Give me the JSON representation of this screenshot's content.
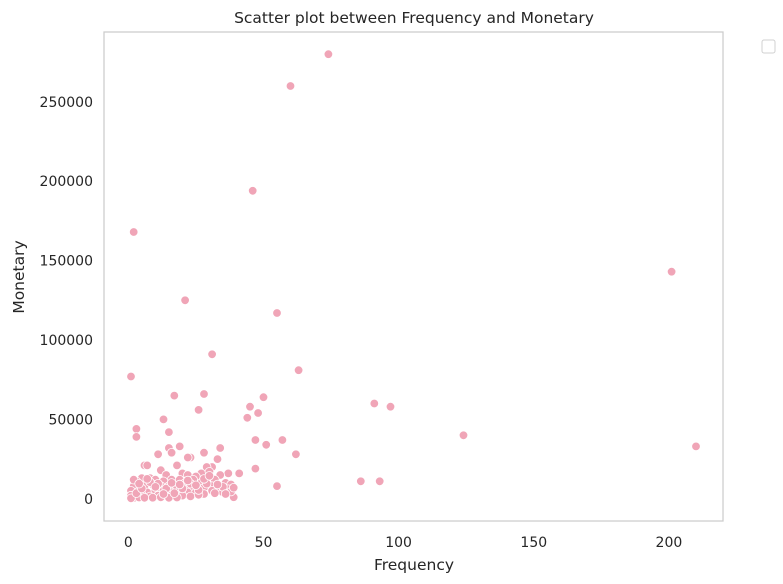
{
  "chart_data": {
    "type": "scatter",
    "title": "Scatter plot between Frequency and Monetary",
    "xlabel": "Frequency",
    "ylabel": "Monetary",
    "xlim": [
      -9,
      220
    ],
    "ylim": [
      -14000,
      294000
    ],
    "xticks": [
      0,
      50,
      100,
      150,
      200
    ],
    "yticks": [
      0,
      50000,
      100000,
      150000,
      200000,
      250000
    ],
    "grid": false,
    "legend": "top-right, outside plot (empty)",
    "colors": {
      "point": "#f0a5b7",
      "edge": "#ffffff",
      "frame": "#cccccc",
      "text": "#262626"
    },
    "points": [
      [
        74,
        280000
      ],
      [
        60,
        260000
      ],
      [
        46,
        194000
      ],
      [
        2,
        168000
      ],
      [
        201,
        143000
      ],
      [
        21,
        125000
      ],
      [
        55,
        117000
      ],
      [
        31,
        91000
      ],
      [
        63,
        81000
      ],
      [
        1,
        77000
      ],
      [
        28,
        66000
      ],
      [
        17,
        65000
      ],
      [
        50,
        64000
      ],
      [
        91,
        60000
      ],
      [
        45,
        58000
      ],
      [
        97,
        58000
      ],
      [
        26,
        56000
      ],
      [
        48,
        54000
      ],
      [
        44,
        51000
      ],
      [
        13,
        50000
      ],
      [
        3,
        44000
      ],
      [
        15,
        42000
      ],
      [
        124,
        40000
      ],
      [
        3,
        39000
      ],
      [
        47,
        37000
      ],
      [
        57,
        37000
      ],
      [
        51,
        34000
      ],
      [
        210,
        33000
      ],
      [
        19,
        33000
      ],
      [
        34,
        32000
      ],
      [
        15,
        32000
      ],
      [
        28,
        29000
      ],
      [
        62,
        28000
      ],
      [
        11,
        28000
      ],
      [
        16,
        29000
      ],
      [
        23,
        26000
      ],
      [
        22,
        26000
      ],
      [
        33,
        25000
      ],
      [
        6,
        21000
      ],
      [
        7,
        21000
      ],
      [
        18,
        21000
      ],
      [
        31,
        20000
      ],
      [
        29,
        20000
      ],
      [
        47,
        19000
      ],
      [
        12,
        18000
      ],
      [
        37,
        16000
      ],
      [
        41,
        16000
      ],
      [
        20,
        16000
      ],
      [
        27,
        16000
      ],
      [
        30,
        17000
      ],
      [
        14,
        15000
      ],
      [
        22,
        15000
      ],
      [
        34,
        15000
      ],
      [
        25,
        14000
      ],
      [
        5,
        13000
      ],
      [
        8,
        13000
      ],
      [
        10,
        12000
      ],
      [
        16,
        12000
      ],
      [
        19,
        12000
      ],
      [
        24,
        12000
      ],
      [
        32,
        12000
      ],
      [
        3,
        11000
      ],
      [
        13,
        11000
      ],
      [
        21,
        10000
      ],
      [
        27,
        10000
      ],
      [
        86,
        11000
      ],
      [
        93,
        11000
      ],
      [
        36,
        10000
      ],
      [
        38,
        9000
      ],
      [
        55,
        8000
      ],
      [
        2,
        8000
      ],
      [
        6,
        8000
      ],
      [
        9,
        9000
      ],
      [
        12,
        8000
      ],
      [
        15,
        8000
      ],
      [
        18,
        7000
      ],
      [
        21,
        8000
      ],
      [
        24,
        7000
      ],
      [
        28,
        7000
      ],
      [
        31,
        8000
      ],
      [
        34,
        6000
      ],
      [
        37,
        6000
      ],
      [
        1,
        5000
      ],
      [
        4,
        5000
      ],
      [
        7,
        4000
      ],
      [
        10,
        5000
      ],
      [
        13,
        5000
      ],
      [
        16,
        4000
      ],
      [
        19,
        5000
      ],
      [
        22,
        4000
      ],
      [
        25,
        4000
      ],
      [
        28,
        3000
      ],
      [
        31,
        5000
      ],
      [
        35,
        4000
      ],
      [
        1,
        2000
      ],
      [
        3,
        1500
      ],
      [
        5,
        2500
      ],
      [
        8,
        1500
      ],
      [
        11,
        2000
      ],
      [
        14,
        1500
      ],
      [
        17,
        2500
      ],
      [
        20,
        2000
      ],
      [
        23,
        1500
      ],
      [
        26,
        2500
      ],
      [
        39,
        1000
      ],
      [
        2,
        500
      ],
      [
        4,
        800
      ],
      [
        6,
        600
      ],
      [
        9,
        700
      ],
      [
        12,
        900
      ],
      [
        15,
        600
      ],
      [
        18,
        800
      ],
      [
        1,
        300
      ],
      [
        3,
        3500
      ],
      [
        5,
        6500
      ],
      [
        8,
        10500
      ],
      [
        11,
        9500
      ],
      [
        14,
        6500
      ],
      [
        17,
        3500
      ],
      [
        20,
        6500
      ],
      [
        23,
        9500
      ],
      [
        26,
        5500
      ],
      [
        29,
        9500
      ],
      [
        32,
        3500
      ],
      [
        35,
        7500
      ],
      [
        38,
        4500
      ],
      [
        2,
        12000
      ],
      [
        4,
        9500
      ],
      [
        7,
        12500
      ],
      [
        10,
        7500
      ],
      [
        13,
        3000
      ],
      [
        16,
        10000
      ],
      [
        19,
        9000
      ],
      [
        22,
        11500
      ],
      [
        25,
        8500
      ],
      [
        28,
        12500
      ],
      [
        33,
        9000
      ],
      [
        36,
        3000
      ],
      [
        39,
        7000
      ],
      [
        30,
        14500
      ]
    ]
  }
}
